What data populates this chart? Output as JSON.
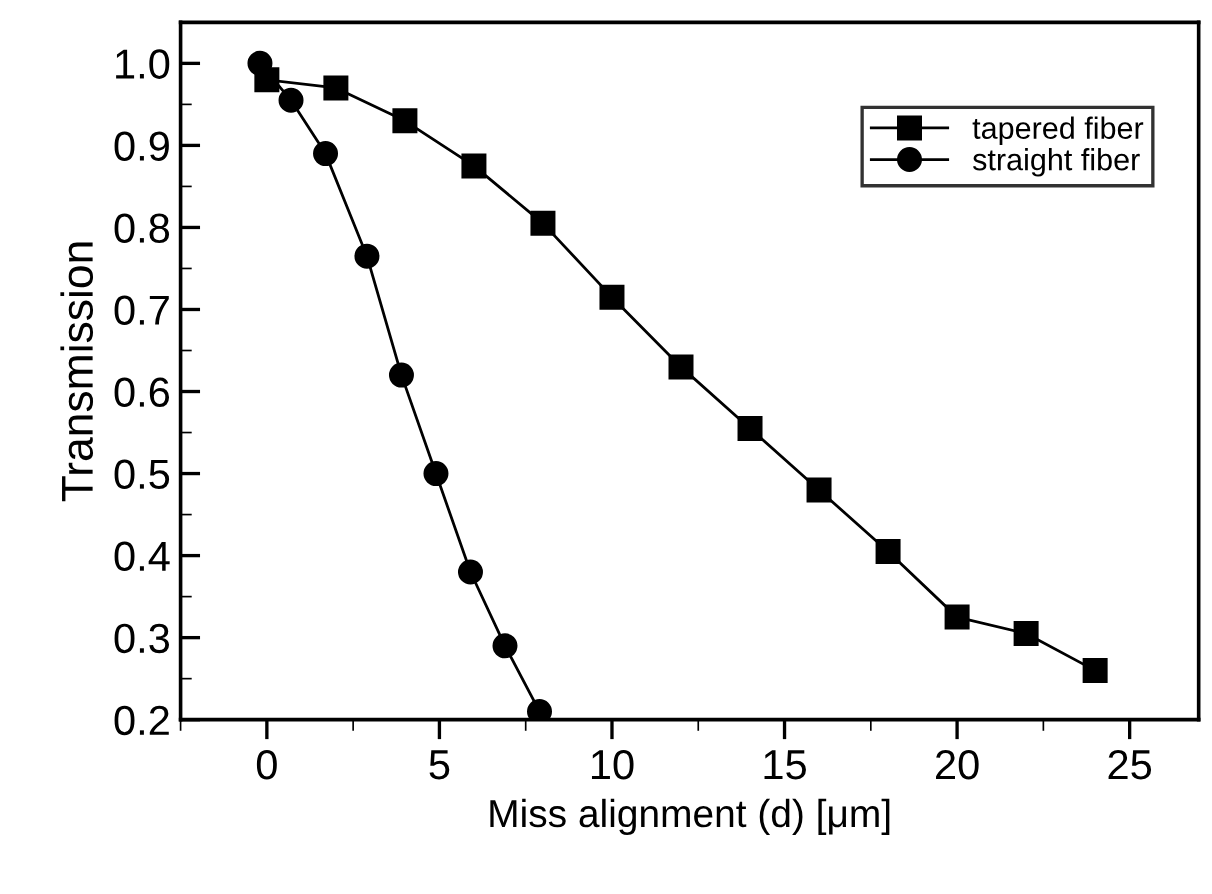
{
  "chart_data": {
    "type": "line",
    "xlabel": "Miss alignment (d) [μm]",
    "ylabel": "Transmission",
    "xlim": [
      -2.5,
      27
    ],
    "ylim": [
      0.2,
      1.05
    ],
    "xticks": [
      0,
      5,
      10,
      15,
      20,
      25
    ],
    "yticks": [
      {
        "value": 0.2,
        "label": "0.2"
      },
      {
        "value": 0.3,
        "label": "0.3"
      },
      {
        "value": 0.4,
        "label": "0.4"
      },
      {
        "value": 0.5,
        "label": "0.5"
      },
      {
        "value": 0.6,
        "label": "0.6"
      },
      {
        "value": 0.7,
        "label": "0.7"
      },
      {
        "value": 0.8,
        "label": "0.8"
      },
      {
        "value": 0.9,
        "label": "0.9"
      },
      {
        "value": 1.0,
        "label": "1.0"
      }
    ],
    "legend": "top right",
    "grid": false,
    "series": [
      {
        "name": "tapered fiber",
        "color": "#000000",
        "marker": "square",
        "x": [
          0,
          2,
          4,
          6,
          8,
          10,
          12,
          14,
          16,
          18,
          20,
          22,
          24
        ],
        "values": [
          0.98,
          0.97,
          0.93,
          0.875,
          0.805,
          0.715,
          0.63,
          0.555,
          0.48,
          0.405,
          0.325,
          0.305,
          0.26
        ]
      },
      {
        "name": "straight fiber",
        "color": "#000000",
        "marker": "circle",
        "x": [
          -0.2,
          0.7,
          1.7,
          2.9,
          3.9,
          4.9,
          5.9,
          6.9,
          7.9
        ],
        "values": [
          1.0,
          0.955,
          0.89,
          0.765,
          0.62,
          0.5,
          0.38,
          0.29,
          0.21
        ]
      }
    ]
  }
}
